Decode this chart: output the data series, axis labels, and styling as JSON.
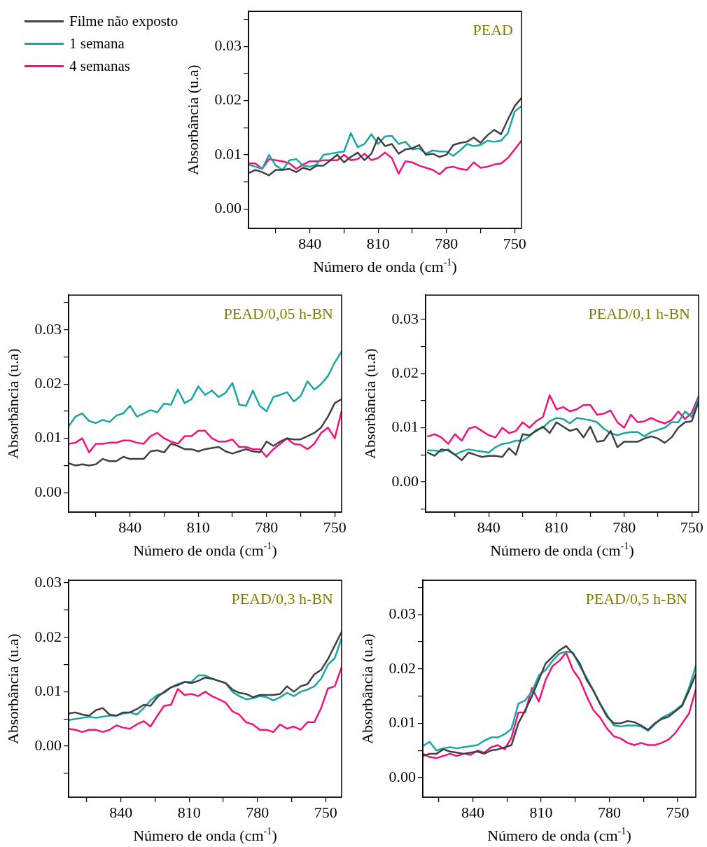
{
  "chart_data": [
    {
      "type": "line",
      "title": "PEAD",
      "xlabel": "Número de onda (cm$^{-1}$)",
      "ylabel": "Absorbância (u.a)",
      "legend": "top left",
      "x": [
        867,
        864,
        861,
        858,
        855,
        852,
        849,
        846,
        843,
        840,
        837,
        834,
        831,
        828,
        825,
        822,
        819,
        816,
        813,
        810,
        807,
        804,
        801,
        798,
        795,
        792,
        789,
        786,
        783,
        780,
        777,
        774,
        771,
        768,
        765,
        762,
        759,
        756,
        753,
        750,
        747
      ],
      "xlim": [
        867,
        747
      ],
      "xticks": [
        {
          "value": 855,
          "label": null
        },
        840,
        {
          "value": 825,
          "label": null
        },
        810,
        {
          "value": 795,
          "label": null
        },
        780,
        {
          "value": 765,
          "label": null
        },
        750
      ],
      "ylim": [
        -0.0036,
        0.0365
      ],
      "yticks": [
        {
          "value": 0,
          "label": "0.00"
        },
        {
          "value": 0.005,
          "label": null
        },
        0.01,
        {
          "value": 0.015,
          "label": null
        },
        0.02,
        {
          "value": 0.025,
          "label": null
        },
        0.03,
        {
          "value": 0.035,
          "label": null
        }
      ],
      "series": [
        {
          "name": "Filme não exposto",
          "color": "#404040",
          "values": [
            0.0066,
            0.0072,
            0.0068,
            0.0062,
            0.0072,
            0.0072,
            0.0074,
            0.0068,
            0.0076,
            0.0072,
            0.008,
            0.008,
            0.009,
            0.01,
            0.0086,
            0.0096,
            0.0104,
            0.009,
            0.0102,
            0.0132,
            0.0116,
            0.012,
            0.0102,
            0.011,
            0.0112,
            0.0118,
            0.01,
            0.0102,
            0.0096,
            0.01,
            0.0118,
            0.0122,
            0.0124,
            0.0132,
            0.0122,
            0.0136,
            0.0146,
            0.0138,
            0.0165,
            0.019,
            0.0205
          ]
        },
        {
          "name": "1 semana",
          "color": "#1aa6a6",
          "values": [
            0.0082,
            0.0078,
            0.0074,
            0.01,
            0.008,
            0.0072,
            0.009,
            0.0092,
            0.008,
            0.0078,
            0.0082,
            0.01,
            0.0102,
            0.0104,
            0.0106,
            0.014,
            0.0114,
            0.012,
            0.0138,
            0.012,
            0.0134,
            0.0135,
            0.012,
            0.0124,
            0.011,
            0.0112,
            0.0102,
            0.0108,
            0.0106,
            0.0106,
            0.0098,
            0.0108,
            0.012,
            0.0116,
            0.0118,
            0.0126,
            0.0124,
            0.0126,
            0.014,
            0.018,
            0.019
          ]
        },
        {
          "name": "4 semanas",
          "color": "#f0147a",
          "values": [
            0.0084,
            0.0084,
            0.0074,
            0.0092,
            0.009,
            0.0088,
            0.0084,
            0.0074,
            0.0082,
            0.0088,
            0.0088,
            0.009,
            0.009,
            0.009,
            0.01,
            0.009,
            0.0092,
            0.0102,
            0.009,
            0.0094,
            0.0104,
            0.0094,
            0.0065,
            0.0088,
            0.0086,
            0.008,
            0.0076,
            0.0072,
            0.0064,
            0.0076,
            0.0078,
            0.0074,
            0.0072,
            0.0086,
            0.0076,
            0.0078,
            0.0082,
            0.0084,
            0.0094,
            0.011,
            0.0126
          ]
        }
      ]
    },
    {
      "type": "line",
      "title": "PEAD/0,05 h-BN",
      "xlabel": "Número de onda (cm$^{-1}$)",
      "ylabel": "Absorbância (u.a)",
      "x": [
        867,
        864,
        861,
        858,
        855,
        852,
        849,
        846,
        843,
        840,
        837,
        834,
        831,
        828,
        825,
        822,
        819,
        816,
        813,
        810,
        807,
        804,
        801,
        798,
        795,
        792,
        789,
        786,
        783,
        780,
        777,
        774,
        771,
        768,
        765,
        762,
        759,
        756,
        753,
        750,
        747
      ],
      "xlim": [
        867,
        747
      ],
      "xticks": [
        {
          "value": 855,
          "label": null
        },
        840,
        {
          "value": 825,
          "label": null
        },
        810,
        {
          "value": 795,
          "label": null
        },
        780,
        {
          "value": 765,
          "label": null
        },
        750
      ],
      "ylim": [
        -0.0036,
        0.0364
      ],
      "yticks": [
        {
          "value": 0,
          "label": "0.00"
        },
        {
          "value": 0.005,
          "label": null
        },
        0.01,
        {
          "value": 0.015,
          "label": null
        },
        0.02,
        {
          "value": 0.025,
          "label": null
        },
        0.03,
        {
          "value": 0.035,
          "label": null
        }
      ],
      "series": [
        {
          "color": "#404040",
          "values": [
            0.0054,
            0.005,
            0.0052,
            0.005,
            0.0052,
            0.0062,
            0.0058,
            0.0058,
            0.0066,
            0.0062,
            0.0062,
            0.0062,
            0.0076,
            0.0078,
            0.0074,
            0.009,
            0.0086,
            0.008,
            0.008,
            0.0076,
            0.008,
            0.0082,
            0.0084,
            0.0076,
            0.0072,
            0.0076,
            0.008,
            0.0076,
            0.0074,
            0.0094,
            0.0086,
            0.0094,
            0.01,
            0.0098,
            0.0098,
            0.0104,
            0.011,
            0.012,
            0.014,
            0.0165,
            0.0172
          ]
        },
        {
          "color": "#1aa6a6",
          "values": [
            0.0122,
            0.014,
            0.0146,
            0.0132,
            0.0128,
            0.0134,
            0.013,
            0.0142,
            0.0146,
            0.016,
            0.014,
            0.0146,
            0.0152,
            0.0148,
            0.0164,
            0.0162,
            0.019,
            0.0165,
            0.0172,
            0.0196,
            0.018,
            0.0188,
            0.0176,
            0.0184,
            0.0202,
            0.0162,
            0.016,
            0.0188,
            0.016,
            0.015,
            0.0176,
            0.018,
            0.0185,
            0.0168,
            0.0178,
            0.0205,
            0.019,
            0.02,
            0.0215,
            0.024,
            0.026
          ]
        },
        {
          "color": "#f0147a",
          "values": [
            0.009,
            0.0092,
            0.01,
            0.0074,
            0.009,
            0.009,
            0.0092,
            0.0092,
            0.0096,
            0.0096,
            0.0092,
            0.009,
            0.0104,
            0.011,
            0.01,
            0.0094,
            0.009,
            0.0104,
            0.0104,
            0.0114,
            0.0114,
            0.01,
            0.0094,
            0.0094,
            0.0098,
            0.0084,
            0.0084,
            0.008,
            0.008,
            0.0066,
            0.008,
            0.009,
            0.01,
            0.009,
            0.0088,
            0.008,
            0.009,
            0.011,
            0.012,
            0.01,
            0.015
          ]
        }
      ]
    },
    {
      "type": "line",
      "title": "PEAD/0,1 h-BN",
      "xlabel": "Número de onda (cm$^{-1}$)",
      "ylabel": "Absorbância (u.a)",
      "x": [
        867,
        864,
        861,
        858,
        855,
        852,
        849,
        846,
        843,
        840,
        837,
        834,
        831,
        828,
        825,
        822,
        819,
        816,
        813,
        810,
        807,
        804,
        801,
        798,
        795,
        792,
        789,
        786,
        783,
        780,
        777,
        774,
        771,
        768,
        765,
        762,
        759,
        756,
        753,
        750,
        747
      ],
      "xlim": [
        868,
        747
      ],
      "xticks": [
        {
          "value": 855,
          "label": null
        },
        840,
        {
          "value": 825,
          "label": null
        },
        810,
        {
          "value": 795,
          "label": null
        },
        780,
        {
          "value": 765,
          "label": null
        },
        750
      ],
      "ylim": [
        -0.0056,
        0.0345
      ],
      "yticks": [
        {
          "value": -0.005,
          "label": null
        },
        {
          "value": 0,
          "label": "0.00"
        },
        {
          "value": 0.005,
          "label": null
        },
        0.01,
        {
          "value": 0.015,
          "label": null
        },
        0.02,
        {
          "value": 0.025,
          "label": null
        },
        0.03
      ],
      "series": [
        {
          "color": "#404040",
          "values": [
            0.0054,
            0.0048,
            0.006,
            0.0058,
            0.005,
            0.004,
            0.0054,
            0.005,
            0.0046,
            0.0048,
            0.0048,
            0.0046,
            0.0062,
            0.005,
            0.0088,
            0.0086,
            0.0094,
            0.0102,
            0.009,
            0.011,
            0.0102,
            0.0094,
            0.0098,
            0.0082,
            0.0102,
            0.0074,
            0.0076,
            0.0094,
            0.0064,
            0.0074,
            0.0074,
            0.0074,
            0.008,
            0.0084,
            0.008,
            0.0072,
            0.0082,
            0.01,
            0.011,
            0.0112,
            0.0148
          ]
        },
        {
          "color": "#1aa6a6",
          "values": [
            0.0058,
            0.0058,
            0.0056,
            0.006,
            0.005,
            0.0056,
            0.006,
            0.0058,
            0.0056,
            0.0054,
            0.0064,
            0.007,
            0.0072,
            0.0076,
            0.0076,
            0.0084,
            0.0096,
            0.01,
            0.0112,
            0.0118,
            0.0116,
            0.0108,
            0.0118,
            0.0116,
            0.0114,
            0.011,
            0.0098,
            0.009,
            0.0086,
            0.009,
            0.0092,
            0.0092,
            0.0084,
            0.0092,
            0.0096,
            0.01,
            0.011,
            0.011,
            0.013,
            0.012,
            0.0155
          ]
        },
        {
          "color": "#f0147a",
          "values": [
            0.0084,
            0.0088,
            0.0082,
            0.007,
            0.0088,
            0.0076,
            0.0098,
            0.0102,
            0.0094,
            0.0086,
            0.0082,
            0.01,
            0.009,
            0.0094,
            0.011,
            0.01,
            0.0112,
            0.012,
            0.016,
            0.0134,
            0.0138,
            0.013,
            0.0134,
            0.0142,
            0.0142,
            0.0124,
            0.0126,
            0.0132,
            0.011,
            0.01,
            0.0124,
            0.011,
            0.0112,
            0.0118,
            0.0112,
            0.0108,
            0.0114,
            0.013,
            0.0116,
            0.0128,
            0.0158
          ]
        }
      ]
    },
    {
      "type": "line",
      "title": "PEAD/0,3 h-BN",
      "xlabel": "Número de onda (cm$^{-1}$)",
      "ylabel": "Absorbância (u.a)",
      "x": [
        863,
        860,
        857,
        854,
        851,
        848,
        845,
        842,
        839,
        836,
        833,
        830,
        827,
        824,
        821,
        818,
        815,
        812,
        809,
        806,
        803,
        800,
        797,
        794,
        791,
        788,
        785,
        782,
        779,
        776,
        773,
        770,
        767,
        764,
        761,
        758,
        755,
        752,
        749,
        746,
        743
      ],
      "xlim": [
        863,
        743
      ],
      "xticks": [
        {
          "value": 855,
          "label": null
        },
        840,
        {
          "value": 825,
          "label": null
        },
        810,
        {
          "value": 795,
          "label": null
        },
        780,
        {
          "value": 765,
          "label": null
        },
        750
      ],
      "ylim": [
        -0.0094,
        0.0305
      ],
      "yticks": [
        {
          "value": -0.005,
          "label": null
        },
        {
          "value": 0,
          "label": "0.00"
        },
        {
          "value": 0.005,
          "label": null
        },
        0.01,
        {
          "value": 0.015,
          "label": null
        },
        0.02,
        {
          "value": 0.025,
          "label": null
        },
        0.03
      ],
      "series": [
        {
          "color": "#404040",
          "values": [
            0.006,
            0.0062,
            0.0058,
            0.0056,
            0.0066,
            0.007,
            0.0058,
            0.0056,
            0.0062,
            0.0062,
            0.0068,
            0.0076,
            0.0074,
            0.009,
            0.01,
            0.0108,
            0.0112,
            0.0118,
            0.0116,
            0.012,
            0.0126,
            0.0124,
            0.012,
            0.0116,
            0.0104,
            0.0098,
            0.0096,
            0.009,
            0.0094,
            0.0094,
            0.0094,
            0.0096,
            0.011,
            0.01,
            0.011,
            0.0114,
            0.0132,
            0.014,
            0.016,
            0.0185,
            0.021
          ]
        },
        {
          "color": "#1aa6a6",
          "values": [
            0.0048,
            0.005,
            0.0052,
            0.0054,
            0.0052,
            0.0054,
            0.0056,
            0.0056,
            0.006,
            0.0062,
            0.0058,
            0.007,
            0.0084,
            0.0094,
            0.0098,
            0.0108,
            0.0114,
            0.0118,
            0.0118,
            0.013,
            0.013,
            0.0124,
            0.012,
            0.0116,
            0.01,
            0.0092,
            0.0086,
            0.0088,
            0.0092,
            0.009,
            0.0084,
            0.009,
            0.0098,
            0.0092,
            0.01,
            0.0104,
            0.011,
            0.0124,
            0.015,
            0.0162,
            0.0198
          ]
        },
        {
          "color": "#f0147a",
          "values": [
            0.0032,
            0.003,
            0.0026,
            0.003,
            0.003,
            0.0026,
            0.003,
            0.0038,
            0.0034,
            0.0032,
            0.004,
            0.0046,
            0.0036,
            0.0056,
            0.0074,
            0.0076,
            0.0105,
            0.0094,
            0.0096,
            0.0092,
            0.01,
            0.0092,
            0.0086,
            0.008,
            0.0064,
            0.0058,
            0.0044,
            0.004,
            0.003,
            0.003,
            0.0026,
            0.004,
            0.0032,
            0.0036,
            0.003,
            0.0044,
            0.0044,
            0.007,
            0.0106,
            0.011,
            0.0145
          ]
        }
      ]
    },
    {
      "type": "line",
      "title": "PEAD/0,5 h-BN",
      "xlabel": "Número de onda (cm$^{-1}$)",
      "ylabel": "Absorbância (u.a)",
      "x": [
        862,
        859,
        856,
        853,
        850,
        847,
        844,
        841,
        838,
        835,
        832,
        829,
        826,
        823,
        820,
        817,
        814,
        811,
        808,
        805,
        802,
        799,
        796,
        793,
        790,
        787,
        784,
        781,
        778,
        775,
        772,
        769,
        766,
        763,
        760,
        757,
        754,
        751,
        748,
        745,
        742
      ],
      "xlim": [
        862,
        742
      ],
      "xticks": [
        {
          "value": 855,
          "label": null
        },
        840,
        {
          "value": 825,
          "label": null
        },
        810,
        {
          "value": 795,
          "label": null
        },
        780,
        {
          "value": 765,
          "label": null
        },
        750
      ],
      "ylim": [
        -0.0036,
        0.0363
      ],
      "yticks": [
        {
          "value": 0,
          "label": "0.00"
        },
        {
          "value": 0.005,
          "label": null
        },
        0.01,
        {
          "value": 0.015,
          "label": null
        },
        0.02,
        {
          "value": 0.025,
          "label": null
        },
        0.03,
        {
          "value": 0.035,
          "label": null
        }
      ],
      "series": [
        {
          "color": "#404040",
          "values": [
            0.004,
            0.0044,
            0.0044,
            0.0052,
            0.0048,
            0.0046,
            0.0044,
            0.0046,
            0.0048,
            0.0044,
            0.005,
            0.0052,
            0.0056,
            0.006,
            0.01,
            0.0124,
            0.015,
            0.018,
            0.021,
            0.0222,
            0.0234,
            0.0242,
            0.0228,
            0.021,
            0.018,
            0.016,
            0.0135,
            0.0112,
            0.01,
            0.01,
            0.0104,
            0.0102,
            0.0096,
            0.0088,
            0.01,
            0.0108,
            0.0112,
            0.0122,
            0.0132,
            0.016,
            0.019
          ]
        },
        {
          "color": "#1aa6a6",
          "values": [
            0.0058,
            0.0066,
            0.005,
            0.0054,
            0.0056,
            0.0054,
            0.0056,
            0.0058,
            0.006,
            0.0068,
            0.0074,
            0.0074,
            0.008,
            0.009,
            0.0136,
            0.0142,
            0.0158,
            0.0188,
            0.0198,
            0.0215,
            0.0228,
            0.0232,
            0.023,
            0.0205,
            0.0184,
            0.016,
            0.0136,
            0.0115,
            0.0096,
            0.0094,
            0.0096,
            0.0096,
            0.0094,
            0.0086,
            0.0098,
            0.011,
            0.0116,
            0.0124,
            0.0134,
            0.0165,
            0.0205
          ]
        },
        {
          "color": "#f0147a",
          "values": [
            0.0044,
            0.0038,
            0.0036,
            0.004,
            0.0044,
            0.004,
            0.0044,
            0.0042,
            0.005,
            0.0046,
            0.0056,
            0.006,
            0.0052,
            0.0074,
            0.012,
            0.012,
            0.0165,
            0.014,
            0.018,
            0.0205,
            0.0215,
            0.023,
            0.0198,
            0.018,
            0.015,
            0.0124,
            0.011,
            0.009,
            0.0076,
            0.0072,
            0.0064,
            0.006,
            0.0064,
            0.006,
            0.006,
            0.0064,
            0.007,
            0.0082,
            0.01,
            0.0118,
            0.0162
          ]
        }
      ]
    }
  ]
}
